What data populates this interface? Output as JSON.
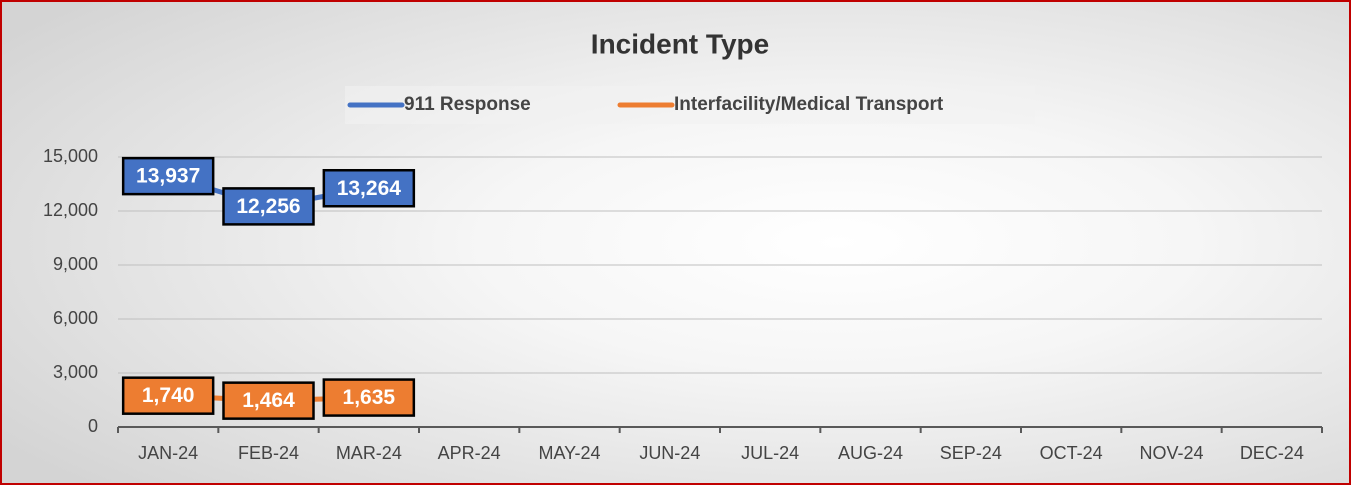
{
  "chart_data": {
    "type": "line",
    "title": "Incident Type",
    "categories": [
      "JAN-24",
      "FEB-24",
      "MAR-24",
      "APR-24",
      "MAY-24",
      "JUN-24",
      "JUL-24",
      "AUG-24",
      "SEP-24",
      "OCT-24",
      "NOV-24",
      "DEC-24"
    ],
    "series": [
      {
        "name": "911 Response",
        "color": "#4472c4",
        "values": [
          13937,
          12256,
          13264,
          null,
          null,
          null,
          null,
          null,
          null,
          null,
          null,
          null
        ],
        "value_labels": [
          "13,937",
          "12,256",
          "13,264",
          null,
          null,
          null,
          null,
          null,
          null,
          null,
          null,
          null
        ]
      },
      {
        "name": "Interfacility/Medical Transport",
        "color": "#ed7d31",
        "values": [
          1740,
          1464,
          1635,
          null,
          null,
          null,
          null,
          null,
          null,
          null,
          null,
          null
        ],
        "value_labels": [
          "1,740",
          "1,464",
          "1,635",
          null,
          null,
          null,
          null,
          null,
          null,
          null,
          null,
          null
        ]
      }
    ],
    "ylim": [
      0,
      15000
    ],
    "yticks": [
      0,
      {
        "value": 3000,
        "label": "3,000"
      },
      {
        "value": 6000,
        "label": "6,000"
      },
      {
        "value": 9000,
        "label": "9,000"
      },
      {
        "value": 12000,
        "label": "12,000"
      },
      {
        "value": 15000,
        "label": "15,000"
      }
    ],
    "grid": true,
    "legend": "top"
  }
}
